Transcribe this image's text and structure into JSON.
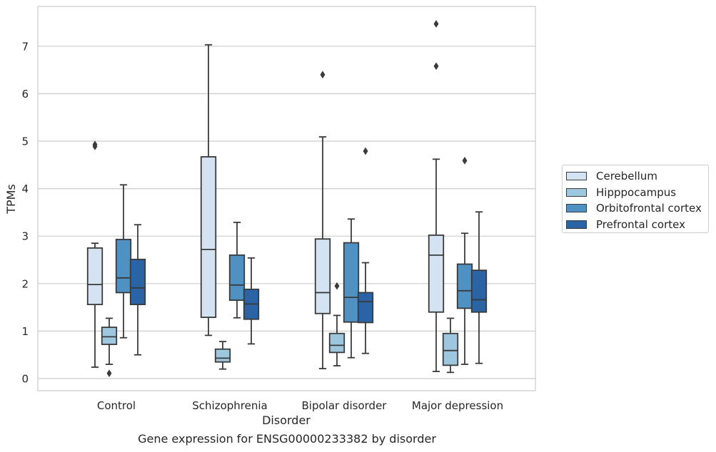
{
  "chart_data": {
    "type": "boxplot",
    "categories": [
      "Control",
      "Schizophrenia",
      "Bipolar disorder",
      "Major depression"
    ],
    "xlabel": "Disorder",
    "ylabel": "TPMs",
    "caption": "Gene expression for ENSG00000233382 by disorder",
    "ylim": [
      -0.25,
      7.83
    ],
    "yticks": [
      "0",
      "1",
      "2",
      "3",
      "4",
      "5",
      "6",
      "7"
    ],
    "grid": "horizontal",
    "legend_position": "right",
    "series": [
      {
        "name": "Cerebellum",
        "color": "#d3e3f2",
        "boxes": [
          {
            "whislo": 0.24,
            "q1": 1.56,
            "med": 1.98,
            "q3": 2.75,
            "whishi": 2.85,
            "fliers": [
              4.89,
              4.93
            ]
          },
          {
            "whislo": 0.91,
            "q1": 1.29,
            "med": 2.72,
            "q3": 4.67,
            "whishi": 7.03,
            "fliers": []
          },
          {
            "whislo": 0.21,
            "q1": 1.37,
            "med": 1.81,
            "q3": 2.94,
            "whishi": 5.09,
            "fliers": [
              6.4
            ]
          },
          {
            "whislo": 0.15,
            "q1": 1.4,
            "med": 2.6,
            "q3": 3.02,
            "whishi": 4.62,
            "fliers": [
              6.58,
              7.47
            ]
          }
        ]
      },
      {
        "name": "Hipppocampus",
        "color": "#9dc6df",
        "boxes": [
          {
            "whislo": 0.3,
            "q1": 0.72,
            "med": 0.88,
            "q3": 1.08,
            "whishi": 1.27,
            "fliers": [
              0.11
            ]
          },
          {
            "whislo": 0.2,
            "q1": 0.35,
            "med": 0.43,
            "q3": 0.62,
            "whishi": 0.78,
            "fliers": []
          },
          {
            "whislo": 0.27,
            "q1": 0.55,
            "med": 0.7,
            "q3": 0.95,
            "whishi": 1.33,
            "fliers": [
              1.95
            ]
          },
          {
            "whislo": 0.13,
            "q1": 0.28,
            "med": 0.59,
            "q3": 0.95,
            "whishi": 1.27,
            "fliers": []
          }
        ]
      },
      {
        "name": "Orbitofrontal cortex",
        "color": "#4f91c3",
        "boxes": [
          {
            "whislo": 0.86,
            "q1": 1.81,
            "med": 2.12,
            "q3": 2.93,
            "whishi": 4.08,
            "fliers": []
          },
          {
            "whislo": 1.28,
            "q1": 1.65,
            "med": 1.97,
            "q3": 2.6,
            "whishi": 3.29,
            "fliers": []
          },
          {
            "whislo": 0.44,
            "q1": 1.19,
            "med": 1.71,
            "q3": 2.86,
            "whishi": 3.36,
            "fliers": []
          },
          {
            "whislo": 0.3,
            "q1": 1.48,
            "med": 1.85,
            "q3": 2.41,
            "whishi": 3.06,
            "fliers": [
              4.59
            ]
          }
        ]
      },
      {
        "name": "Prefrontal cortex",
        "color": "#2a64a5",
        "boxes": [
          {
            "whislo": 0.5,
            "q1": 1.56,
            "med": 1.91,
            "q3": 2.51,
            "whishi": 3.24,
            "fliers": []
          },
          {
            "whislo": 0.73,
            "q1": 1.25,
            "med": 1.57,
            "q3": 1.88,
            "whishi": 2.54,
            "fliers": []
          },
          {
            "whislo": 0.53,
            "q1": 1.18,
            "med": 1.62,
            "q3": 1.81,
            "whishi": 2.44,
            "fliers": [
              4.79
            ]
          },
          {
            "whislo": 0.32,
            "q1": 1.4,
            "med": 1.66,
            "q3": 2.28,
            "whishi": 3.51,
            "fliers": []
          }
        ]
      }
    ]
  }
}
